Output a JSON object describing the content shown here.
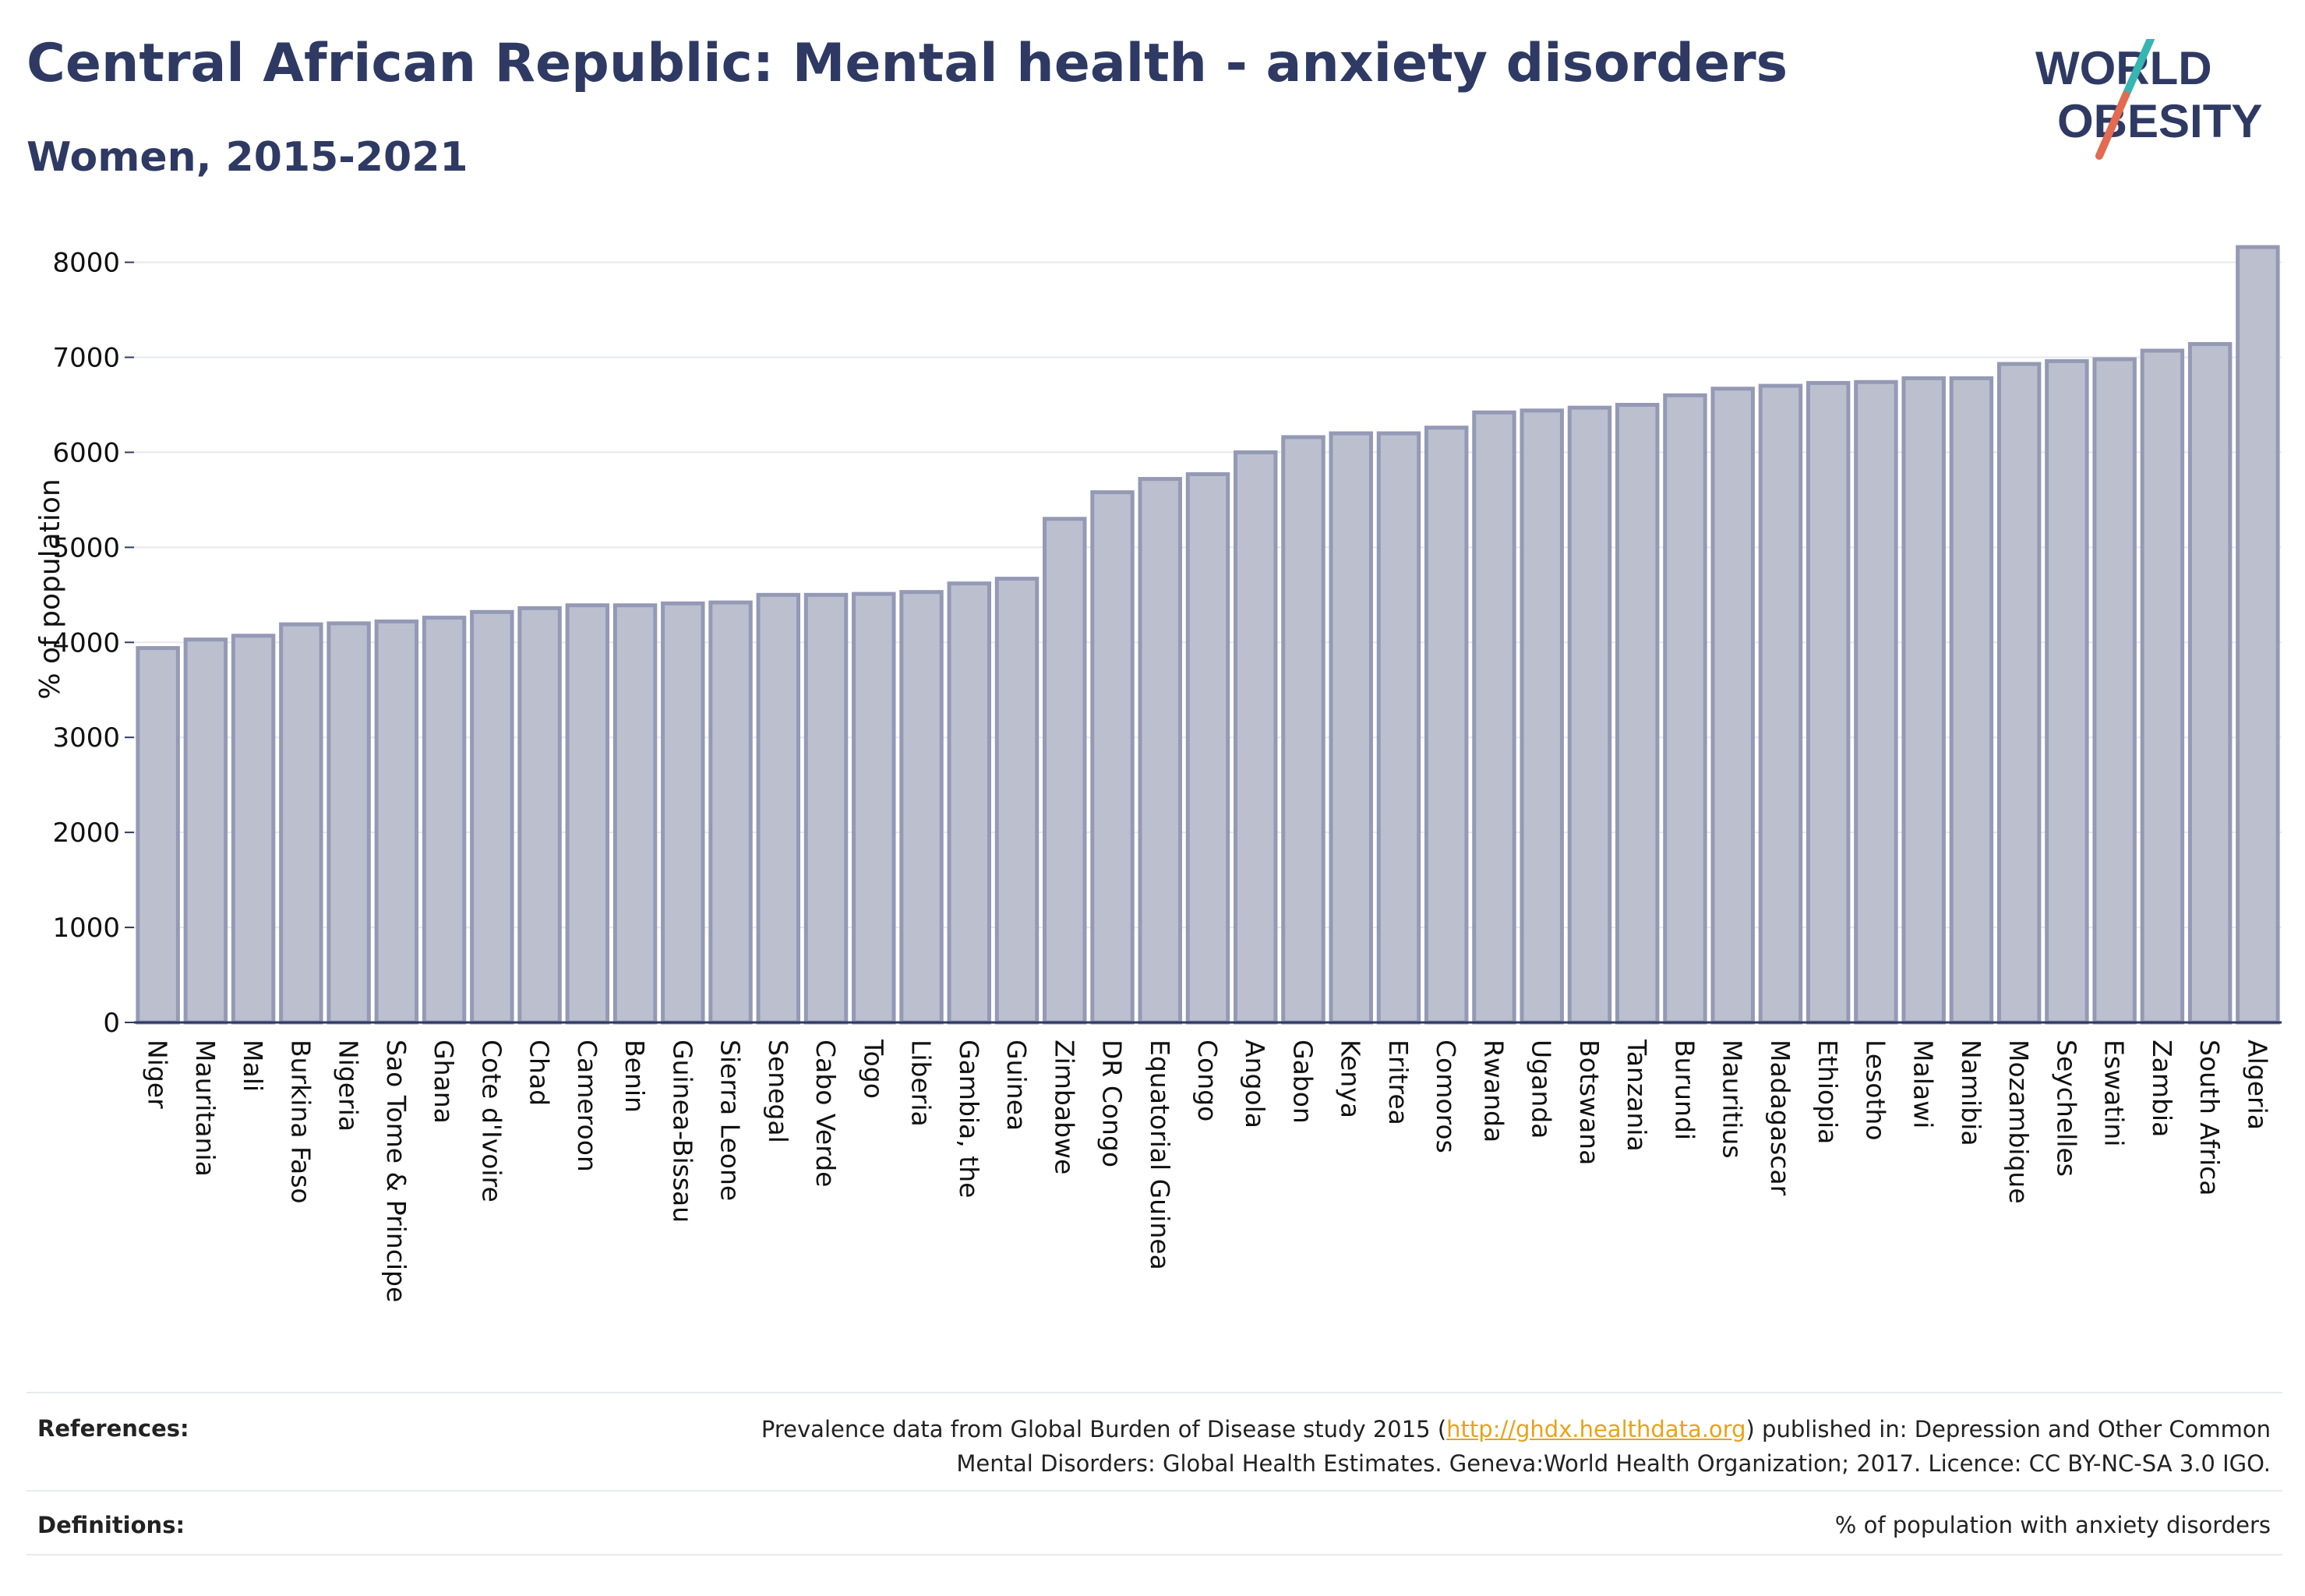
{
  "title": "Central African Republic: Mental health - anxiety disorders",
  "subtitle": "Women, 2015-2021",
  "logo": {
    "line1": "WORLD",
    "line2": "OBESITY",
    "accent": "#e26b52",
    "accent2": "#37b5b2",
    "color": "#2e3a63"
  },
  "colors": {
    "bar_fill": "#bcc0ce",
    "bar_stroke": "#9499b5",
    "grid": "#e6e8ee",
    "axis": "#2e3a63",
    "text": "#111111"
  },
  "chart_data": {
    "type": "bar",
    "ylabel": "% of population",
    "ylim": [
      0,
      8300
    ],
    "yticks": [
      0,
      1000,
      2000,
      3000,
      4000,
      5000,
      6000,
      7000,
      8000
    ],
    "grid": true,
    "categories": [
      "Niger",
      "Mauritania",
      "Mali",
      "Burkina Faso",
      "Nigeria",
      "Sao Tome & Principe",
      "Ghana",
      "Cote d'Ivoire",
      "Chad",
      "Cameroon",
      "Benin",
      "Guinea-Bissau",
      "Sierra Leone",
      "Senegal",
      "Cabo Verde",
      "Togo",
      "Liberia",
      "Gambia, the",
      "Guinea",
      "Zimbabwe",
      "DR Congo",
      "Equatorial Guinea",
      "Congo",
      "Angola",
      "Gabon",
      "Kenya",
      "Eritrea",
      "Comoros",
      "Rwanda",
      "Uganda",
      "Botswana",
      "Tanzania",
      "Burundi",
      "Mauritius",
      "Madagascar",
      "Ethiopia",
      "Lesotho",
      "Malawi",
      "Namibia",
      "Mozambique",
      "Seychelles",
      "Eswatini",
      "Zambia",
      "South Africa",
      "Algeria"
    ],
    "values": [
      3940,
      4030,
      4070,
      4190,
      4200,
      4220,
      4260,
      4320,
      4360,
      4390,
      4390,
      4410,
      4420,
      4500,
      4500,
      4510,
      4530,
      4620,
      4670,
      5300,
      5580,
      5720,
      5770,
      6000,
      6160,
      6200,
      6200,
      6260,
      6420,
      6440,
      6470,
      6500,
      6600,
      6670,
      6700,
      6730,
      6740,
      6780,
      6780,
      6930,
      6960,
      6980,
      7070,
      7140,
      8160
    ]
  },
  "footer": {
    "references_label": "References:",
    "references_text_before": "Prevalence data from Global Burden of Disease study 2015 (",
    "references_link": "http://ghdx.healthdata.org",
    "references_text_after": ") published in: Depression and Other Common",
    "references_line2": "Mental Disorders: Global Health Estimates. Geneva:World Health Organization; 2017. Licence: CC BY-NC-SA 3.0 IGO.",
    "definitions_label": "Definitions:",
    "definitions_text": "% of population with anxiety disorders"
  }
}
